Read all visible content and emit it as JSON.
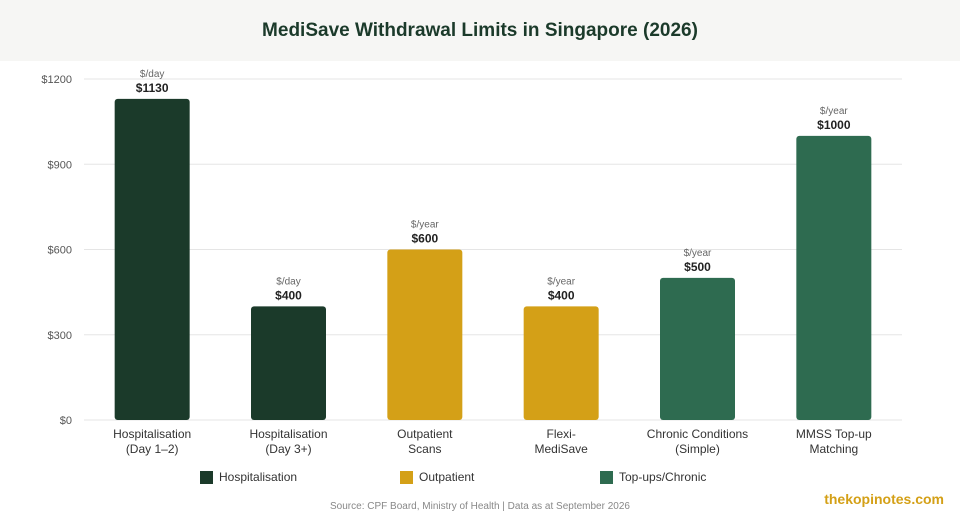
{
  "title": "MediSave Withdrawal Limits in Singapore (2026)",
  "source": "Source: CPF Board, Ministry of Health | Data as at September 2026",
  "watermark": "thekopinotes.com",
  "colors": {
    "hospitalisation": "#1b3a2a",
    "outpatient": "#d4a017",
    "topups": "#2e6b50",
    "grid": "#e5e5e5",
    "axis_text": "#555555"
  },
  "legend": [
    {
      "label": "Hospitalisation",
      "color": "#1b3a2a"
    },
    {
      "label": "Outpatient",
      "color": "#d4a017"
    },
    {
      "label": "Top-ups/Chronic",
      "color": "#2e6b50"
    }
  ],
  "chart_data": {
    "type": "bar",
    "title": "MediSave Withdrawal Limits in Singapore (2026)",
    "categories": [
      [
        "Hospitalisation",
        "(Day 1–2)"
      ],
      [
        "Hospitalisation",
        "(Day 3+)"
      ],
      [
        "Outpatient",
        "Scans"
      ],
      [
        "Flexi-",
        "MediSave"
      ],
      [
        "Chronic Conditions",
        "(Simple)"
      ],
      [
        "MMSS Top-up",
        "Matching"
      ]
    ],
    "values": [
      1130,
      400,
      600,
      400,
      500,
      1000
    ],
    "value_labels": [
      "$1130",
      "$400",
      "$600",
      "$400",
      "$500",
      "$1000"
    ],
    "units": [
      "$/day",
      "$/day",
      "$/year",
      "$/year",
      "$/year",
      "$/year"
    ],
    "groups": [
      "hospitalisation",
      "hospitalisation",
      "outpatient",
      "outpatient",
      "topups",
      "topups"
    ],
    "ylim": [
      0,
      1200
    ],
    "yticks": [
      0,
      300,
      600,
      900,
      1200
    ],
    "ytick_labels": [
      "$0",
      "$300",
      "$600",
      "$900",
      "$1200"
    ],
    "grid": true,
    "legend_position": "bottom"
  }
}
